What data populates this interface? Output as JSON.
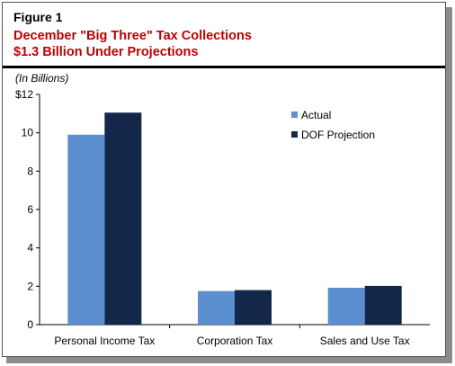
{
  "figure_label": "Figure 1",
  "title_line1": "December \"Big Three\" Tax Collections",
  "title_line2": "$1.3 Billion Under Projections",
  "units_note": "(In Billions)",
  "colors": {
    "actual": "#5b8fd0",
    "projection": "#13274a",
    "title": "#c00000"
  },
  "chart_data": {
    "type": "bar",
    "title": "",
    "xlabel": "",
    "ylabel": "",
    "categories": [
      "Personal Income Tax",
      "Corporation Tax",
      "Sales and Use Tax"
    ],
    "series": [
      {
        "name": "Actual",
        "values": [
          9.9,
          1.75,
          1.92
        ]
      },
      {
        "name": "DOF Projection",
        "values": [
          11.05,
          1.8,
          2.02
        ]
      }
    ],
    "ylim": [
      0,
      12
    ],
    "y_ticks": [
      0,
      2,
      4,
      6,
      8,
      10,
      12
    ],
    "y_tick_labels": [
      "0",
      "2",
      "4",
      "6",
      "8",
      "10",
      "$12"
    ],
    "grid": false,
    "legend": "top-right, inside plot"
  }
}
